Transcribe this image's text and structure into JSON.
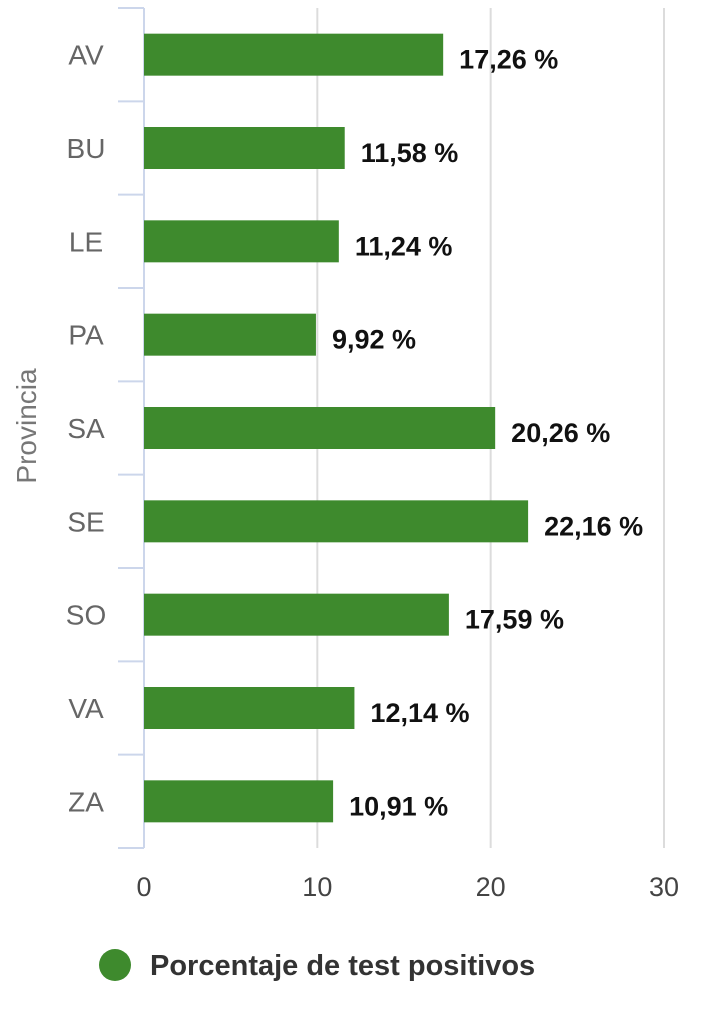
{
  "chart_data": {
    "type": "bar",
    "orientation": "horizontal",
    "categories": [
      "AV",
      "BU",
      "LE",
      "PA",
      "SA",
      "SE",
      "SO",
      "VA",
      "ZA"
    ],
    "series": [
      {
        "name": "Porcentaje de test positivos",
        "values": [
          17.26,
          11.58,
          11.24,
          9.92,
          20.26,
          22.16,
          17.59,
          12.14,
          10.91
        ],
        "labels": [
          "17,26 %",
          "11,58 %",
          "11,24 %",
          "9,92 %",
          "20,26 %",
          "22,16 %",
          "17,59 %",
          "12,14 %",
          "10,91 %"
        ],
        "color": "#3e8a2d"
      }
    ],
    "title": "",
    "xlabel": "",
    "ylabel": "Provincia",
    "xlim": [
      0,
      30
    ],
    "xticks": [
      0,
      10,
      20,
      30
    ],
    "xtick_labels": [
      "0",
      "10",
      "20",
      "30"
    ],
    "grid": true,
    "legend_position": "bottom"
  }
}
